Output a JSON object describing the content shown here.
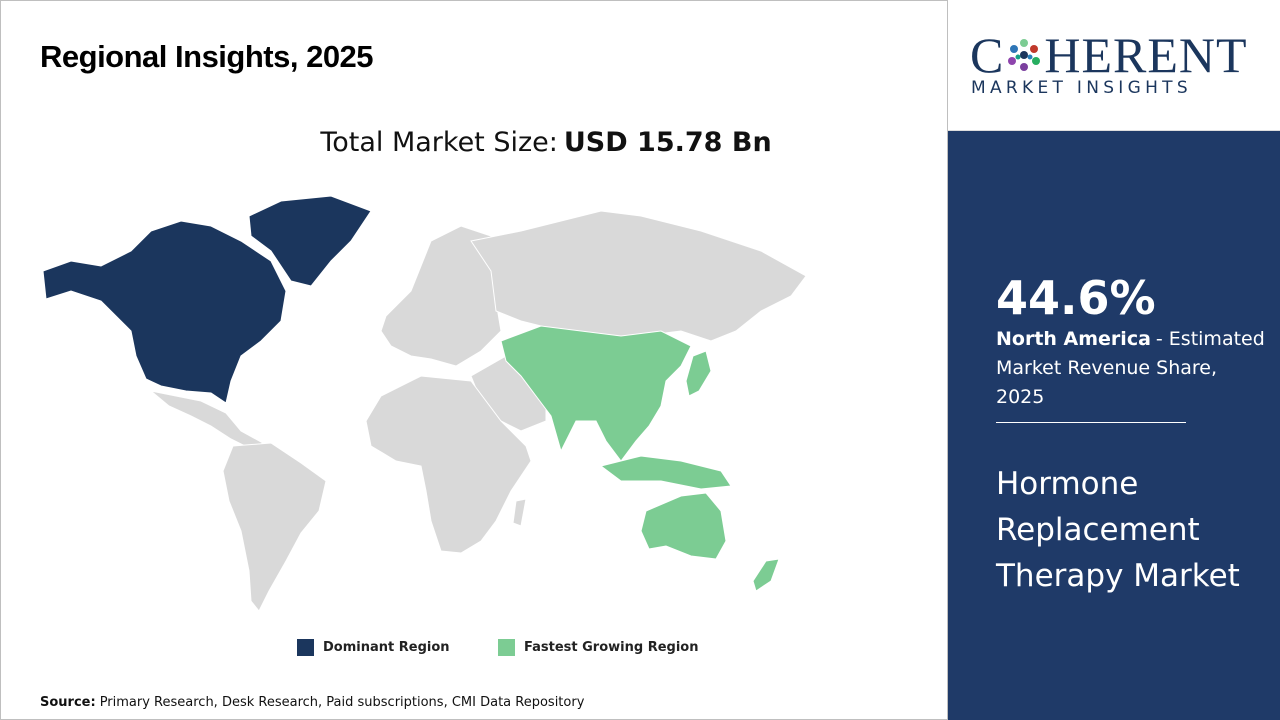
{
  "header": {
    "title": "Regional Insights, 2025"
  },
  "market_size": {
    "label": "Total Market Size:",
    "value": "USD 15.78 Bn"
  },
  "legend": [
    {
      "label": "Dominant Region",
      "color": "#1b365d"
    },
    {
      "label": "Fastest Growing Region",
      "color": "#7ccc93"
    }
  ],
  "source": {
    "label": "Source:",
    "text": "Primary Research, Desk Research, Paid subscriptions, CMI Data Repository"
  },
  "logo": {
    "left": "C",
    "right": "HERENT",
    "tagline": "MARKET INSIGHTS"
  },
  "panel": {
    "share": "44.6%",
    "region": "North America",
    "description": "- Estimated Market Revenue Share, 2025",
    "market": "Hormone Replacement Therapy Market"
  }
}
